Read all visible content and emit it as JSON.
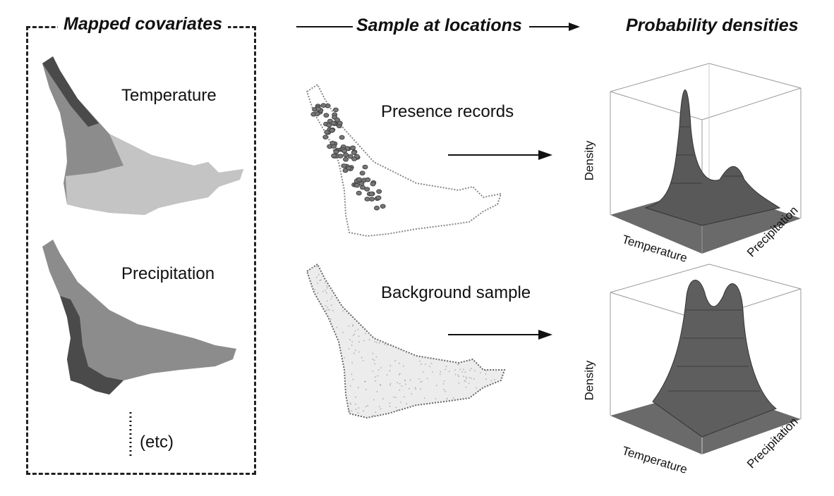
{
  "headings": {
    "left": "Mapped covariates",
    "middle": "Sample at locations",
    "right": "Probability densities"
  },
  "maps": {
    "temperature_label": "Temperature",
    "precipitation_label": "Precipitation",
    "etc_label": "(etc)",
    "presence_label": "Presence records",
    "background_label": "Background sample"
  },
  "plots": [
    {
      "z_label": "Density",
      "x_label": "Temperature",
      "y_label": "Precipitation"
    },
    {
      "z_label": "Density",
      "x_label": "Temperature",
      "y_label": "Precipitation"
    }
  ],
  "colors": {
    "map_dark": "#4a4a4a",
    "map_mid": "#8c8c8c",
    "map_light": "#c4c4c4",
    "surface": "#6a6a6a"
  }
}
